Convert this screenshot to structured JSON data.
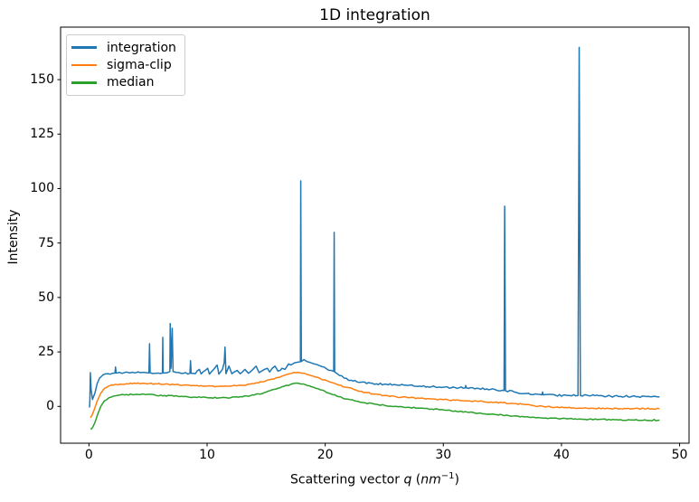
{
  "chart_data": {
    "type": "line",
    "title": "1D integration",
    "ylabel": "Intensity",
    "xlabel": {
      "prefix": "Scattering vector ",
      "var": "q",
      "mid": " (",
      "unit": "nm",
      "exp": "−1",
      "suffix": ")"
    },
    "xlabel_text": "Scattering vector q (nm⁻¹)",
    "xlim": [
      -2.4,
      50.8
    ],
    "ylim": [
      -16.9,
      174.1
    ],
    "xticks": [
      0,
      10,
      20,
      30,
      40,
      50
    ],
    "yticks": [
      0,
      25,
      50,
      75,
      100,
      125,
      150
    ],
    "grid": false,
    "legend_position": "upper left",
    "background_color": "#ffffff",
    "spine_color": "#000000",
    "series": [
      {
        "name": "integration",
        "color": "#1f77b4",
        "noise": 0.45,
        "points": [
          [
            0.05,
            -0.5
          ],
          [
            0.08,
            3
          ],
          [
            0.12,
            15.5
          ],
          [
            0.18,
            8
          ],
          [
            0.3,
            3.2
          ],
          [
            0.5,
            6
          ],
          [
            0.7,
            10.5
          ],
          [
            0.9,
            13
          ],
          [
            1.2,
            14.5
          ],
          [
            1.6,
            15
          ],
          [
            2.0,
            15.2
          ],
          [
            2.2,
            15.3
          ],
          [
            2.25,
            18.1
          ],
          [
            2.3,
            15.3
          ],
          [
            2.6,
            15.6
          ],
          [
            3.0,
            15.5
          ],
          [
            3.5,
            15.4
          ],
          [
            4.0,
            15.5
          ],
          [
            4.5,
            15.6
          ],
          [
            5.0,
            15.4
          ],
          [
            5.08,
            15.4
          ],
          [
            5.13,
            28.8
          ],
          [
            5.18,
            15.4
          ],
          [
            5.6,
            15.2
          ],
          [
            5.9,
            15.3
          ],
          [
            6.22,
            15.3
          ],
          [
            6.25,
            31.7
          ],
          [
            6.28,
            15.3
          ],
          [
            6.6,
            15.4
          ],
          [
            6.85,
            16
          ],
          [
            6.88,
            38
          ],
          [
            6.95,
            17.5
          ],
          [
            7.05,
            35.9
          ],
          [
            7.12,
            16
          ],
          [
            7.4,
            15.6
          ],
          [
            8.0,
            15.2
          ],
          [
            8.55,
            15.2
          ],
          [
            8.6,
            21
          ],
          [
            8.65,
            15.2
          ],
          [
            9.0,
            15.0
          ],
          [
            9.35,
            17
          ],
          [
            9.5,
            14.9
          ],
          [
            10.05,
            17.5
          ],
          [
            10.2,
            14.8
          ],
          [
            10.85,
            19
          ],
          [
            11.0,
            14.8
          ],
          [
            11.3,
            17
          ],
          [
            11.45,
            20
          ],
          [
            11.52,
            27.2
          ],
          [
            11.6,
            15
          ],
          [
            11.85,
            18.5
          ],
          [
            12.1,
            15
          ],
          [
            12.55,
            16.5
          ],
          [
            12.8,
            15
          ],
          [
            13.2,
            17
          ],
          [
            13.5,
            15.2
          ],
          [
            14.15,
            18.5
          ],
          [
            14.4,
            15.5
          ],
          [
            14.7,
            16.5
          ],
          [
            15.1,
            17.5
          ],
          [
            15.3,
            15.8
          ],
          [
            15.75,
            18.5
          ],
          [
            16.0,
            16.2
          ],
          [
            16.35,
            17.5
          ],
          [
            16.6,
            17
          ],
          [
            16.9,
            19.5
          ],
          [
            17.1,
            19
          ],
          [
            17.4,
            20
          ],
          [
            17.7,
            20.3
          ],
          [
            17.9,
            20.5
          ],
          [
            17.93,
            103.5
          ],
          [
            17.98,
            20.6
          ],
          [
            18.2,
            21.5
          ],
          [
            18.45,
            20.6
          ],
          [
            18.7,
            20.2
          ],
          [
            19.0,
            19.6
          ],
          [
            19.3,
            19.2
          ],
          [
            19.7,
            18.3
          ],
          [
            20.1,
            17.3
          ],
          [
            20.5,
            16.5
          ],
          [
            20.72,
            16.1
          ],
          [
            20.76,
            79.9
          ],
          [
            20.8,
            15.8
          ],
          [
            21.2,
            14.2
          ],
          [
            21.6,
            13.0
          ],
          [
            22.2,
            12.0
          ],
          [
            23.0,
            11.1
          ],
          [
            24.0,
            10.6
          ],
          [
            25.0,
            10.2
          ],
          [
            26.0,
            9.9
          ],
          [
            27.0,
            9.6
          ],
          [
            28.0,
            9.3
          ],
          [
            29.0,
            9.0
          ],
          [
            30.0,
            8.8
          ],
          [
            31.0,
            8.6
          ],
          [
            31.85,
            8.5
          ],
          [
            31.9,
            9.6
          ],
          [
            31.95,
            8.5
          ],
          [
            33.0,
            8.2
          ],
          [
            34.0,
            7.8
          ],
          [
            35.0,
            7.4
          ],
          [
            35.14,
            7.3
          ],
          [
            35.16,
            37
          ],
          [
            35.19,
            91.9
          ],
          [
            35.24,
            37.5
          ],
          [
            35.26,
            7.2
          ],
          [
            36.0,
            6.6
          ],
          [
            37.0,
            5.9
          ],
          [
            37.6,
            5.4
          ],
          [
            38.35,
            5.3
          ],
          [
            38.4,
            6.6
          ],
          [
            38.45,
            5.3
          ],
          [
            39.5,
            5.1
          ],
          [
            40.5,
            5.0
          ],
          [
            41.4,
            5.0
          ],
          [
            41.5,
            164.8
          ],
          [
            41.6,
            5.0
          ],
          [
            42.5,
            4.9
          ],
          [
            43.5,
            4.8
          ],
          [
            45.0,
            4.6
          ],
          [
            46.5,
            4.5
          ],
          [
            47.5,
            4.45
          ],
          [
            48.3,
            4.4
          ]
        ]
      },
      {
        "name": "sigma-clip",
        "color": "#ff7f0e",
        "noise": 0.28,
        "points": [
          [
            0.12,
            -5.2
          ],
          [
            0.25,
            -4.2
          ],
          [
            0.45,
            -1.5
          ],
          [
            0.7,
            2.5
          ],
          [
            1.0,
            6.0
          ],
          [
            1.3,
            8.2
          ],
          [
            1.7,
            9.4
          ],
          [
            2.1,
            9.9
          ],
          [
            2.6,
            10.2
          ],
          [
            3.2,
            10.4
          ],
          [
            4.0,
            10.5
          ],
          [
            4.8,
            10.5
          ],
          [
            5.6,
            10.4
          ],
          [
            6.4,
            10.2
          ],
          [
            7.2,
            10.0
          ],
          [
            8.0,
            9.8
          ],
          [
            9.0,
            9.5
          ],
          [
            10.0,
            9.3
          ],
          [
            11.0,
            9.2
          ],
          [
            12.0,
            9.3
          ],
          [
            13.0,
            9.7
          ],
          [
            14.0,
            10.5
          ],
          [
            15.0,
            11.8
          ],
          [
            15.8,
            13.0
          ],
          [
            16.5,
            14.2
          ],
          [
            17.1,
            15.1
          ],
          [
            17.5,
            15.5
          ],
          [
            17.9,
            15.4
          ],
          [
            18.4,
            14.8
          ],
          [
            19.0,
            13.8
          ],
          [
            19.6,
            12.7
          ],
          [
            20.3,
            11.4
          ],
          [
            21.0,
            10.1
          ],
          [
            21.8,
            8.8
          ],
          [
            22.6,
            7.5
          ],
          [
            23.4,
            6.4
          ],
          [
            24.2,
            5.6
          ],
          [
            25.0,
            5.0
          ],
          [
            26.0,
            4.4
          ],
          [
            27.0,
            4.0
          ],
          [
            28.0,
            3.7
          ],
          [
            29.0,
            3.4
          ],
          [
            30.0,
            3.1
          ],
          [
            31.0,
            2.8
          ],
          [
            32.0,
            2.5
          ],
          [
            33.0,
            2.3
          ],
          [
            34.0,
            2.0
          ],
          [
            35.0,
            1.7
          ],
          [
            36.0,
            1.3
          ],
          [
            37.0,
            0.8
          ],
          [
            37.6,
            0.4
          ],
          [
            38.5,
            -0.1
          ],
          [
            39.5,
            -0.4
          ],
          [
            40.5,
            -0.6
          ],
          [
            41.5,
            -0.75
          ],
          [
            42.5,
            -0.85
          ],
          [
            44.0,
            -0.95
          ],
          [
            45.5,
            -1.0
          ],
          [
            47.0,
            -1.05
          ],
          [
            48.3,
            -1.1
          ]
        ]
      },
      {
        "name": "median",
        "color": "#2ca02c",
        "noise": 0.28,
        "points": [
          [
            0.15,
            -10.6
          ],
          [
            0.3,
            -9.8
          ],
          [
            0.5,
            -7.5
          ],
          [
            0.75,
            -3.5
          ],
          [
            1.0,
            0.0
          ],
          [
            1.3,
            2.5
          ],
          [
            1.7,
            4.0
          ],
          [
            2.1,
            4.8
          ],
          [
            2.6,
            5.2
          ],
          [
            3.2,
            5.4
          ],
          [
            4.0,
            5.5
          ],
          [
            4.8,
            5.4
          ],
          [
            5.6,
            5.2
          ],
          [
            6.4,
            5.0
          ],
          [
            7.2,
            4.7
          ],
          [
            8.0,
            4.5
          ],
          [
            9.0,
            4.2
          ],
          [
            10.0,
            4.0
          ],
          [
            11.0,
            3.9
          ],
          [
            12.0,
            4.0
          ],
          [
            13.0,
            4.4
          ],
          [
            14.0,
            5.2
          ],
          [
            15.0,
            6.6
          ],
          [
            15.8,
            7.9
          ],
          [
            16.5,
            9.2
          ],
          [
            17.1,
            10.2
          ],
          [
            17.4,
            10.6
          ],
          [
            17.8,
            10.5
          ],
          [
            18.3,
            10.0
          ],
          [
            19.0,
            8.8
          ],
          [
            19.6,
            7.6
          ],
          [
            20.3,
            6.1
          ],
          [
            21.0,
            4.7
          ],
          [
            21.8,
            3.4
          ],
          [
            22.6,
            2.4
          ],
          [
            23.4,
            1.6
          ],
          [
            24.2,
            1.0
          ],
          [
            25.0,
            0.5
          ],
          [
            26.0,
            0.0
          ],
          [
            27.0,
            -0.4
          ],
          [
            28.0,
            -0.8
          ],
          [
            29.0,
            -1.2
          ],
          [
            30.0,
            -1.6
          ],
          [
            31.0,
            -2.1
          ],
          [
            32.0,
            -2.6
          ],
          [
            33.0,
            -3.1
          ],
          [
            34.0,
            -3.6
          ],
          [
            35.0,
            -4.0
          ],
          [
            36.0,
            -4.4
          ],
          [
            37.0,
            -4.8
          ],
          [
            38.0,
            -5.1
          ],
          [
            39.0,
            -5.4
          ],
          [
            40.0,
            -5.6
          ],
          [
            41.5,
            -5.8
          ],
          [
            43.0,
            -6.0
          ],
          [
            44.5,
            -6.1
          ],
          [
            46.0,
            -6.2
          ],
          [
            48.3,
            -6.3
          ]
        ]
      }
    ]
  }
}
